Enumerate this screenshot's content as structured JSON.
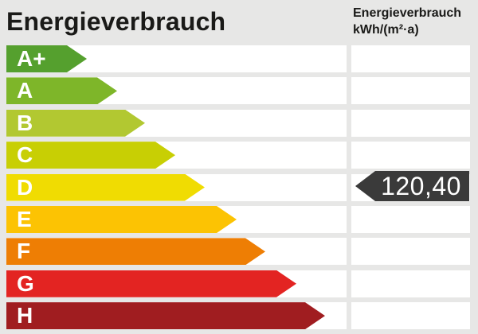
{
  "header": {
    "title": "Energieverbrauch",
    "unit_title": "Energieverbrauch",
    "unit_subtitle": "kWh/(m²·a)"
  },
  "reading": {
    "value_display": "120,40",
    "value": 120.4,
    "unit": "kWh/(m²·a)",
    "energy_class": "D",
    "badge_color": "#3a3a3a",
    "text_color": "#ffffff"
  },
  "scale": {
    "rows": [
      {
        "label": "A+",
        "color": "#55a02e",
        "arrow_width": 101
      },
      {
        "label": "A",
        "color": "#7eb629",
        "arrow_width": 139
      },
      {
        "label": "B",
        "color": "#b2c831",
        "arrow_width": 174
      },
      {
        "label": "C",
        "color": "#c8cf04",
        "arrow_width": 212
      },
      {
        "label": "D",
        "color": "#f0dc02",
        "arrow_width": 249
      },
      {
        "label": "E",
        "color": "#fcc303",
        "arrow_width": 289
      },
      {
        "label": "F",
        "color": "#ee7e04",
        "arrow_width": 325
      },
      {
        "label": "G",
        "color": "#e32422",
        "arrow_width": 364
      },
      {
        "label": "H",
        "color": "#a01d20",
        "arrow_width": 400
      }
    ]
  },
  "colors": {
    "background": "#e7e7e6",
    "row_track": "#ffffff",
    "title_text": "#1a1a18"
  },
  "chart_data": {
    "type": "bar",
    "title": "Energieverbrauch",
    "xlabel": "",
    "ylabel": "kWh/(m²·a)",
    "categories": [
      "A+",
      "A",
      "B",
      "C",
      "D",
      "E",
      "F",
      "G",
      "H"
    ],
    "series": [
      {
        "name": "arrow-length-px",
        "values": [
          101,
          139,
          174,
          212,
          249,
          289,
          325,
          364,
          400
        ]
      }
    ],
    "bar_colors": [
      "#55a02e",
      "#7eb629",
      "#b2c831",
      "#c8cf04",
      "#f0dc02",
      "#fcc303",
      "#ee7e04",
      "#e32422",
      "#a01d20"
    ],
    "annotations": [
      {
        "text": "120,40",
        "category": "D",
        "style": "dark left-pointing tag"
      }
    ],
    "legend": "none",
    "grid": "off",
    "orientation": "horizontal"
  }
}
